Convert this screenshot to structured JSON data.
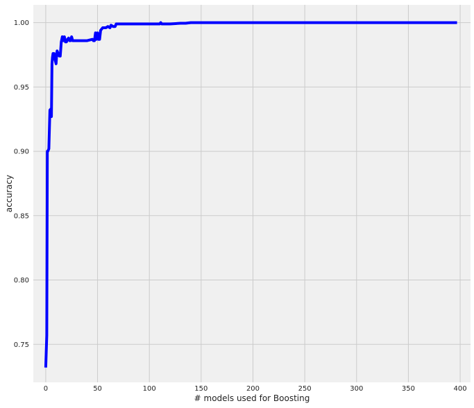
{
  "chart_data": {
    "type": "line",
    "title": "",
    "xlabel": "# models used for Boosting",
    "ylabel": "accuracy",
    "xlim": [
      -12,
      410
    ],
    "ylim": [
      0.7205,
      1.0138
    ],
    "xticks": [
      0,
      50,
      100,
      150,
      200,
      250,
      300,
      350,
      400
    ],
    "yticks": [
      0.75,
      0.8,
      0.85,
      0.9,
      0.95,
      1.0
    ],
    "ytick_labels": [
      "0.75",
      "0.80",
      "0.85",
      "0.90",
      "0.95",
      "1.00"
    ],
    "grid": true,
    "legend": "none",
    "colors": {
      "line": "#0000ff",
      "plot_background": "#f0f0f0",
      "grid": "#cbcbcb"
    },
    "series": [
      {
        "x": [
          0,
          1,
          1.5,
          2,
          3,
          4,
          5,
          5.5,
          6,
          6.5,
          7,
          8,
          9,
          10,
          10.5,
          11,
          12,
          13,
          14,
          15,
          16,
          17,
          18,
          19,
          20,
          21,
          22,
          23,
          24,
          25,
          26,
          27,
          30,
          35,
          40,
          45,
          46,
          47,
          48,
          49,
          50,
          51,
          52,
          53,
          55,
          58,
          60,
          62,
          63,
          65,
          67,
          68,
          70,
          72,
          75,
          80,
          85,
          90,
          100,
          110,
          111,
          112,
          120,
          130,
          135,
          140,
          150,
          160,
          170,
          180,
          200,
          250,
          300,
          350,
          397
        ],
        "y": [
          0.732,
          0.757,
          0.9,
          0.9,
          0.902,
          0.932,
          0.933,
          0.927,
          0.968,
          0.973,
          0.976,
          0.976,
          0.971,
          0.968,
          0.975,
          0.978,
          0.976,
          0.974,
          0.974,
          0.985,
          0.989,
          0.986,
          0.989,
          0.985,
          0.985,
          0.987,
          0.988,
          0.986,
          0.986,
          0.989,
          0.986,
          0.986,
          0.986,
          0.986,
          0.986,
          0.987,
          0.986,
          0.986,
          0.992,
          0.987,
          0.992,
          0.987,
          0.987,
          0.994,
          0.996,
          0.996,
          0.997,
          0.996,
          0.998,
          0.997,
          0.997,
          0.999,
          0.999,
          0.999,
          0.999,
          0.999,
          0.999,
          0.999,
          0.999,
          0.999,
          1.0,
          0.999,
          0.999,
          0.9995,
          0.9995,
          1.0,
          1.0,
          1.0,
          1.0,
          1.0,
          1.0,
          1.0,
          1.0,
          1.0,
          1.0
        ]
      }
    ]
  }
}
